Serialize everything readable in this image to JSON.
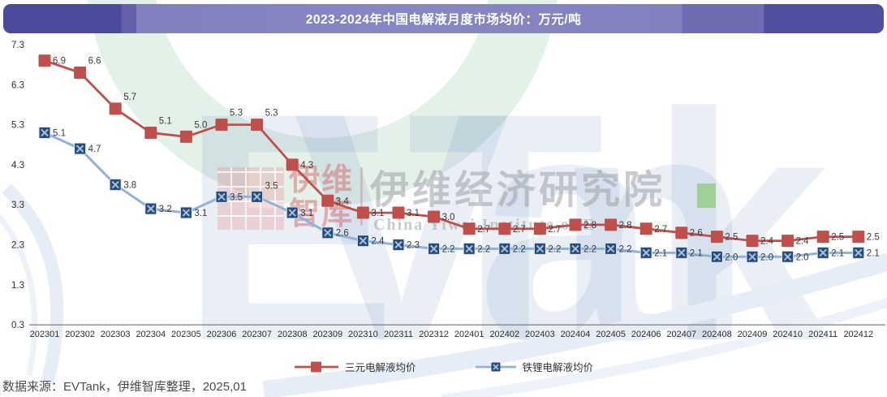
{
  "title_bar": {
    "title": "2023-2024年中国电解液月度市场均价：万元/吨"
  },
  "footer": {
    "source_note": "数据来源：EVTank，伊维智库整理，2025,01"
  },
  "watermark": {
    "brand": "EVTank",
    "logo_line1": "伊维",
    "logo_line2": "智库",
    "org_cn": "伊维经济研究院",
    "org_en": "China Yiwei Institute of E"
  },
  "colors": {
    "title_bar_dark": "#4c4a9d",
    "title_bar_mid": "#6e6cb2",
    "title_bar_light": "#8280bf",
    "title_text": "#ffffff",
    "ternary_red": "#bf4f4b",
    "lfp_line_blue": "#8fb2d9",
    "lfp_marker_navy": "#2b4b76",
    "lfp_marker_x": "#a2c2e2",
    "axis_gray": "#7f7f7f",
    "label_text": "#3a3a3a",
    "watermark_green": "#e4f1e8",
    "watermark_blue_alpha": "rgba(96,134,187,0.13)",
    "watermark_pink": "#d66a6a",
    "watermark_gray": "#9fa1a7",
    "green_accent": "#97cb88"
  },
  "chart_data": {
    "type": "line",
    "title": "2023-2024年中国电解液月度市场均价：万元/吨",
    "unit": "万元/吨",
    "categories": [
      "202301",
      "202302",
      "202303",
      "202304",
      "202305",
      "202306",
      "202307",
      "202308",
      "202309",
      "202310",
      "202311",
      "202312",
      "202401",
      "202402",
      "202403",
      "202404",
      "202405",
      "202406",
      "202407",
      "202408",
      "202409",
      "202410",
      "202411",
      "202412"
    ],
    "series": [
      {
        "name": "三元电解液均价",
        "color": "#bf4f4b",
        "marker": "filled-square",
        "values": [
          6.9,
          6.6,
          5.7,
          5.1,
          5.0,
          5.3,
          5.3,
          4.3,
          3.4,
          3.1,
          3.1,
          3.0,
          2.7,
          2.7,
          2.7,
          2.8,
          2.8,
          2.7,
          2.6,
          2.5,
          2.4,
          2.4,
          2.5,
          2.5
        ]
      },
      {
        "name": "铁锂电解液均价",
        "color": "#8fb2d9",
        "marker": "x-square",
        "marker_fill": "#2b4b76",
        "x_color": "#a2c2e2",
        "values": [
          5.1,
          4.7,
          3.8,
          3.2,
          3.1,
          3.5,
          3.5,
          3.1,
          2.6,
          2.4,
          2.3,
          2.2,
          2.2,
          2.2,
          2.2,
          2.2,
          2.2,
          2.1,
          2.1,
          2.0,
          2.0,
          2.0,
          2.1,
          2.1
        ]
      }
    ],
    "ylim": [
      0.3,
      7.3
    ],
    "yticks": [
      7.3,
      6.3,
      5.3,
      4.3,
      3.3,
      2.3,
      1.3,
      0.3
    ],
    "grid": false,
    "data_labels": true,
    "legend_position": "bottom"
  }
}
